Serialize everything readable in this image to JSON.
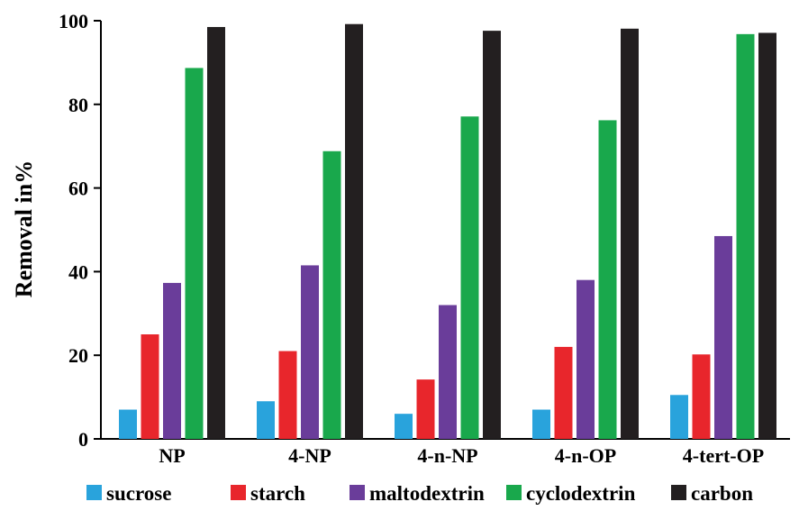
{
  "chart_data": {
    "type": "bar",
    "ylabel": "Removal in%",
    "xlabel": "",
    "ylim": [
      0,
      100
    ],
    "yticks": [
      0,
      20,
      40,
      60,
      80,
      100
    ],
    "grid": false,
    "legend_position": "bottom",
    "categories": [
      "NP",
      "4-NP",
      "4-n-NP",
      "4-n-OP",
      "4-tert-OP"
    ],
    "series": [
      {
        "name": "sucrose",
        "color": "#29a3dc",
        "values": [
          7,
          9,
          6,
          7,
          10.5
        ]
      },
      {
        "name": "starch",
        "color": "#e8262c",
        "values": [
          25,
          21,
          14.2,
          22,
          20.2
        ]
      },
      {
        "name": "maltodextrin",
        "color": "#6a3d9a",
        "values": [
          37.3,
          41.5,
          32,
          38,
          48.5
        ]
      },
      {
        "name": "cyclodextrin",
        "color": "#19a84c",
        "values": [
          88.7,
          68.8,
          77.1,
          76.2,
          96.8
        ]
      },
      {
        "name": "carbon",
        "color": "#231f20",
        "values": [
          98.5,
          99.2,
          97.6,
          98.1,
          97.1
        ]
      }
    ]
  }
}
